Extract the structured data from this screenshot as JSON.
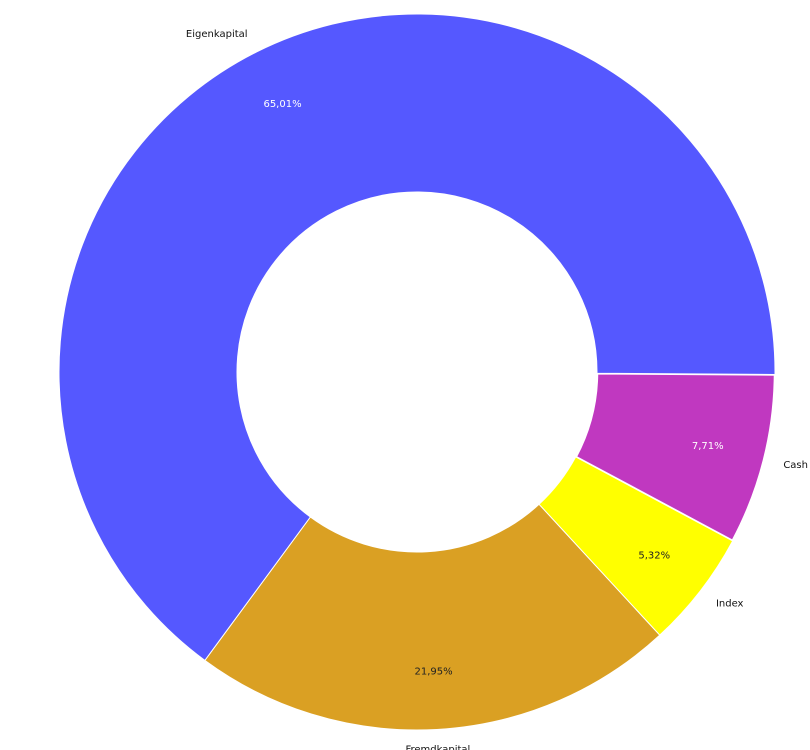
{
  "chart_data": {
    "type": "pie",
    "donut": true,
    "title": "",
    "start_angle": "3 o'clock, clockwise",
    "slices": [
      {
        "label": "Cash",
        "value": 7.71,
        "value_label": "7,71%",
        "color": "#C038C0",
        "value_text_color": "#FFFFFF"
      },
      {
        "label": "Index",
        "value": 5.32,
        "value_label": "5,32%",
        "color": "#FFFF00",
        "value_text_color": "#222222"
      },
      {
        "label": "Fremdkapital",
        "value": 21.95,
        "value_label": "21,95%",
        "color": "#DAA023",
        "value_text_color": "#222222"
      },
      {
        "label": "Eigenkapital",
        "value": 65.01,
        "value_label": "65,01%",
        "color": "#5558FF",
        "value_text_color": "#FFFFFF"
      }
    ],
    "legend": "none (labels outside slices)"
  }
}
